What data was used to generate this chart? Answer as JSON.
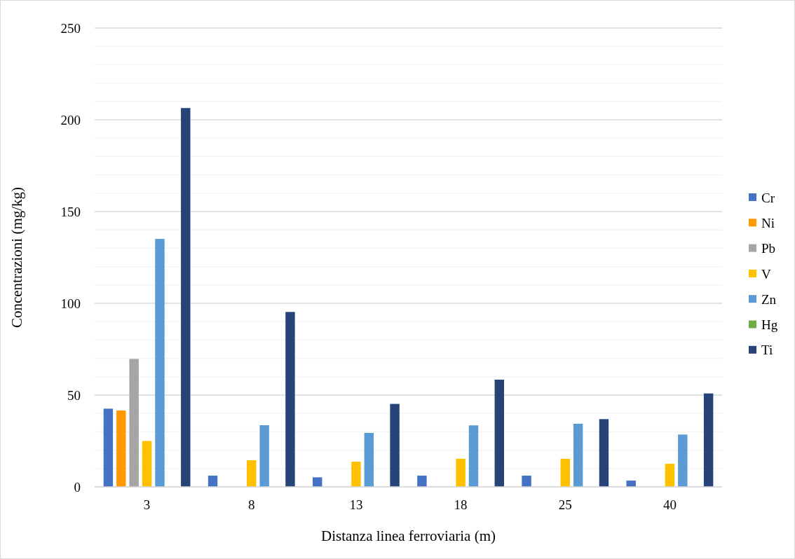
{
  "chart_data": {
    "type": "bar",
    "xlabel": "Distanza linea ferroviaria (m)",
    "ylabel": "Concentrazioni (mg/kg)",
    "categories": [
      "3",
      "8",
      "13",
      "18",
      "25",
      "40"
    ],
    "series": [
      {
        "name": "Cr",
        "color": "#4472c4",
        "values": [
          42.6,
          6.1,
          5.2,
          6.1,
          6.1,
          3.4
        ]
      },
      {
        "name": "Ni",
        "color": "#ff9900",
        "values": [
          41.6,
          null,
          null,
          null,
          null,
          null
        ]
      },
      {
        "name": "Pb",
        "color": "#a5a5a5",
        "values": [
          69.7,
          null,
          null,
          null,
          null,
          null
        ]
      },
      {
        "name": "V",
        "color": "#ffc000",
        "values": [
          25,
          14.5,
          13.7,
          15.3,
          15.3,
          12.6
        ]
      },
      {
        "name": "Zn",
        "color": "#5b9bd5",
        "values": [
          135.1,
          33.6,
          29.4,
          33.5,
          34.4,
          28.5
        ]
      },
      {
        "name": "Hg",
        "color": "#70ad47",
        "values": [
          null,
          null,
          null,
          null,
          null,
          null
        ]
      },
      {
        "name": "Ti",
        "color": "#264478",
        "values": [
          206.4,
          95.3,
          45.2,
          58.4,
          36.9,
          50.9
        ]
      }
    ],
    "ylim": [
      0,
      250
    ],
    "yticks": [
      0,
      {
        "value": 10,
        "label": null
      },
      {
        "value": 20,
        "label": null
      },
      {
        "value": 30,
        "label": null
      },
      {
        "value": 40,
        "label": null
      },
      50,
      {
        "value": 60,
        "label": null
      },
      {
        "value": 70,
        "label": null
      },
      {
        "value": 80,
        "label": null
      },
      {
        "value": 90,
        "label": null
      },
      100,
      {
        "value": 110,
        "label": null
      },
      {
        "value": 120,
        "label": null
      },
      {
        "value": 130,
        "label": null
      },
      {
        "value": 140,
        "label": null
      },
      150,
      {
        "value": 160,
        "label": null
      },
      {
        "value": 170,
        "label": null
      },
      {
        "value": 180,
        "label": null
      },
      {
        "value": 190,
        "label": null
      },
      200,
      {
        "value": 210,
        "label": null
      },
      {
        "value": 220,
        "label": null
      },
      {
        "value": 230,
        "label": null
      },
      {
        "value": 240,
        "label": null
      },
      250
    ],
    "grid": true,
    "legend": "right"
  }
}
